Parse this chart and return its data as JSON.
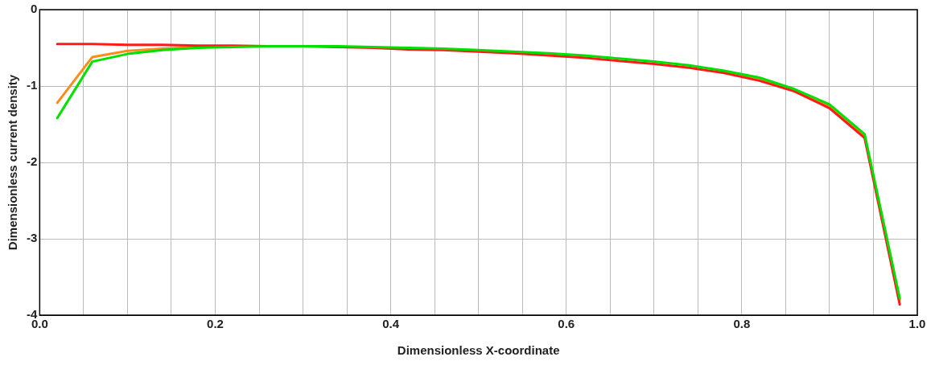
{
  "chart_data": {
    "type": "line",
    "xlabel": "Dimensionless X-coordinate",
    "ylabel": "Dimensionless current density",
    "x": [
      0.02,
      0.06,
      0.1,
      0.14,
      0.18,
      0.22,
      0.26,
      0.3,
      0.34,
      0.38,
      0.42,
      0.46,
      0.5,
      0.54,
      0.58,
      0.62,
      0.66,
      0.7,
      0.74,
      0.78,
      0.82,
      0.86,
      0.9,
      0.94,
      0.98
    ],
    "series": [
      {
        "color": "#00e000",
        "values": [
          -1.42,
          -0.68,
          -0.58,
          -0.53,
          -0.5,
          -0.49,
          -0.48,
          -0.48,
          -0.48,
          -0.49,
          -0.5,
          -0.51,
          -0.53,
          -0.55,
          -0.57,
          -0.6,
          -0.64,
          -0.68,
          -0.73,
          -0.8,
          -0.89,
          -1.04,
          -1.24,
          -1.63,
          -3.78
        ]
      },
      {
        "color": "#ff1a1a",
        "values": [
          -0.45,
          -0.45,
          -0.46,
          -0.46,
          -0.47,
          -0.47,
          -0.48,
          -0.48,
          -0.49,
          -0.5,
          -0.52,
          -0.53,
          -0.55,
          -0.57,
          -0.6,
          -0.63,
          -0.67,
          -0.71,
          -0.76,
          -0.83,
          -0.93,
          -1.07,
          -1.29,
          -1.68,
          -3.86
        ]
      },
      {
        "color": "#ff8c1a",
        "values": [
          -1.22,
          -0.62,
          -0.54,
          -0.51,
          -0.49,
          null,
          null,
          null,
          null,
          null,
          null,
          null,
          null,
          null,
          null,
          null,
          null,
          null,
          null,
          -0.81,
          -0.9,
          -1.05,
          -1.26,
          -1.65,
          -3.8
        ]
      }
    ],
    "xlim": [
      0,
      1
    ],
    "ylim": [
      -4,
      0
    ],
    "xticks": [
      {
        "value": 0,
        "label": "0.0"
      },
      {
        "value": 0.05,
        "label": null
      },
      {
        "value": 0.1,
        "label": null
      },
      {
        "value": 0.15,
        "label": null
      },
      0.2,
      {
        "value": 0.25,
        "label": null
      },
      {
        "value": 0.3,
        "label": null
      },
      {
        "value": 0.35,
        "label": null
      },
      0.4,
      {
        "value": 0.45,
        "label": null
      },
      {
        "value": 0.5,
        "label": null
      },
      {
        "value": 0.55,
        "label": null
      },
      0.6,
      {
        "value": 0.65,
        "label": null
      },
      {
        "value": 0.7,
        "label": null
      },
      {
        "value": 0.75,
        "label": null
      },
      0.8,
      {
        "value": 0.85,
        "label": null
      },
      {
        "value": 0.9,
        "label": null
      },
      {
        "value": 0.95,
        "label": null
      },
      {
        "value": 1,
        "label": "1.0"
      }
    ],
    "yticks": [
      -4,
      -3,
      -2,
      -1,
      0
    ],
    "grid": true,
    "legend": false,
    "marker": "none",
    "line_style": "solid"
  }
}
